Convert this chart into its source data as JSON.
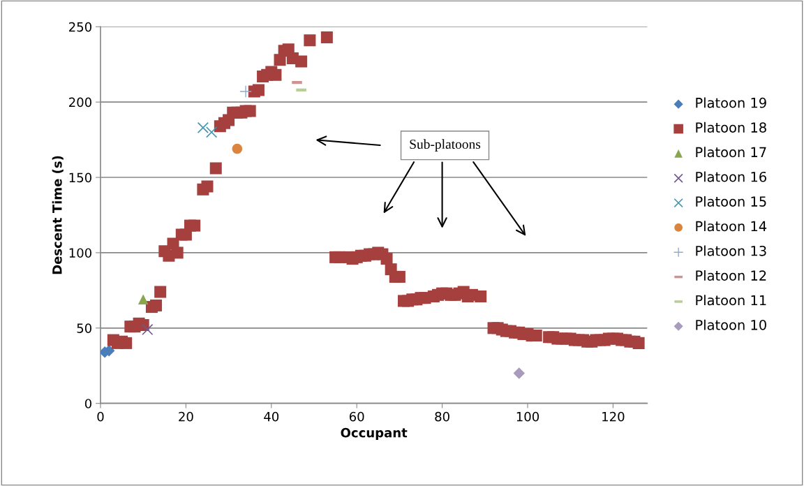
{
  "chart_data": {
    "type": "scatter",
    "xlabel": "Occupant",
    "ylabel": "Descent Time (s)",
    "xlim": [
      0,
      128
    ],
    "xticks": [
      0,
      20,
      40,
      60,
      80,
      100,
      120
    ],
    "ylim": [
      0,
      250
    ],
    "yticks": [
      0,
      50,
      100,
      150,
      200,
      250
    ],
    "grid": "y",
    "legend": "right",
    "annotations": [
      "Sub-platoons"
    ],
    "series": [
      {
        "name": "Platoon 19",
        "color": "#4a7ebb",
        "marker": "diamond",
        "x": [
          1,
          2
        ],
        "values": [
          34,
          35
        ]
      },
      {
        "name": "Platoon 18",
        "color": "#a5403e",
        "marker": "square",
        "x": [
          3,
          4,
          5,
          6,
          7,
          8,
          9,
          10,
          12,
          13,
          14,
          15,
          16,
          17,
          18,
          19,
          20,
          21,
          22,
          24,
          25,
          27,
          28,
          29,
          30,
          31,
          32,
          33,
          34,
          35,
          36,
          37,
          38,
          39,
          40,
          41,
          42,
          43,
          44,
          45,
          47,
          49,
          53,
          55,
          56,
          58,
          59,
          60,
          61,
          62,
          63,
          64,
          65,
          66,
          67,
          68,
          69,
          70,
          71,
          72,
          73,
          74,
          75,
          76,
          78,
          79,
          80,
          81,
          82,
          83,
          84,
          85,
          86,
          87,
          89,
          92,
          93,
          94,
          95,
          96,
          97,
          98,
          99,
          100,
          101,
          102,
          105,
          106,
          107,
          108,
          109,
          110,
          111,
          112,
          113,
          114,
          115,
          116,
          117,
          118,
          119,
          120,
          121,
          122,
          123,
          124,
          125,
          126
        ],
        "values": [
          42,
          40,
          41,
          40,
          51,
          51,
          53,
          52,
          64,
          65,
          74,
          101,
          98,
          106,
          100,
          112,
          112,
          118,
          118,
          142,
          144,
          156,
          184,
          186,
          188,
          193,
          193,
          193,
          194,
          194,
          207,
          208,
          217,
          218,
          220,
          218,
          228,
          234,
          235,
          229,
          227,
          241,
          243,
          97,
          97,
          97,
          96,
          97,
          98,
          98,
          99,
          99,
          100,
          99,
          96,
          89,
          84,
          84,
          68,
          68,
          69,
          69,
          70,
          70,
          71,
          72,
          73,
          73,
          72,
          72,
          73,
          74,
          71,
          72,
          71,
          50,
          50,
          49,
          48,
          48,
          47,
          47,
          46,
          46,
          45,
          45,
          44,
          44,
          43,
          43,
          43,
          43,
          42,
          42,
          42,
          41,
          41,
          42,
          42,
          42,
          43,
          43,
          43,
          42,
          42,
          41,
          41,
          40
        ]
      },
      {
        "name": "Platoon 17",
        "color": "#89a54e",
        "marker": "triangle",
        "x": [
          10
        ],
        "values": [
          69
        ]
      },
      {
        "name": "Platoon 16",
        "color": "#71588f",
        "marker": "cross",
        "x": [
          11
        ],
        "values": [
          49
        ]
      },
      {
        "name": "Platoon 15",
        "color": "#4198af",
        "marker": "cross",
        "x": [
          24,
          26
        ],
        "values": [
          183,
          180
        ]
      },
      {
        "name": "Platoon 14",
        "color": "#db843d",
        "marker": "circle",
        "x": [
          32
        ],
        "values": [
          169
        ]
      },
      {
        "name": "Platoon 13",
        "color": "#93a9cf",
        "marker": "plus",
        "x": [
          34
        ],
        "values": [
          207
        ]
      },
      {
        "name": "Platoon 12",
        "color": "#d19392",
        "x": [
          46
        ],
        "values": [
          213
        ]
      },
      {
        "name": "Platoon 11",
        "color": "#b9cd96",
        "x": [
          47
        ],
        "values": [
          208
        ]
      },
      {
        "name": "Platoon 10",
        "color": "#a99bbd",
        "marker": "diamond",
        "x": [
          98
        ],
        "values": [
          20
        ]
      }
    ]
  }
}
